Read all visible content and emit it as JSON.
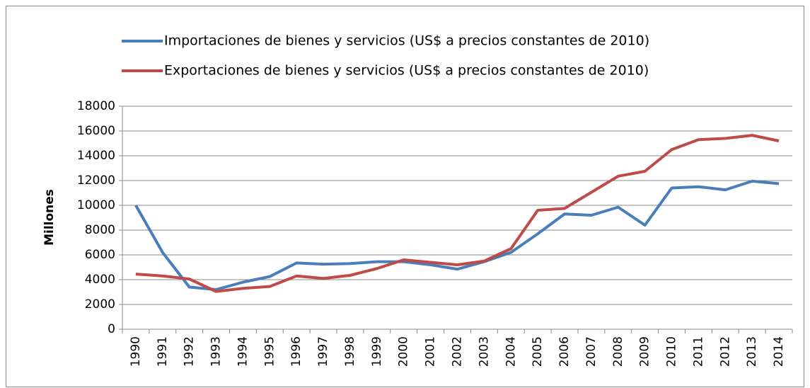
{
  "chart_data": {
    "type": "line",
    "y_label": "Millones",
    "categories": [
      "1990",
      "1991",
      "1992",
      "1993",
      "1994",
      "1995",
      "1996",
      "1997",
      "1998",
      "1999",
      "2000",
      "2001",
      "2002",
      "2003",
      "2004",
      "2005",
      "2006",
      "2007",
      "2008",
      "2009",
      "2010",
      "2011",
      "2012",
      "2013",
      "2014"
    ],
    "series": [
      {
        "name": "Importaciones de bienes y servicios (US$ a precios constantes de 2010)",
        "color": "#4a7ebb",
        "values": [
          10000,
          6200,
          3400,
          3200,
          3800,
          4250,
          5350,
          5250,
          5300,
          5450,
          5450,
          5200,
          4850,
          5450,
          6200,
          7700,
          9300,
          9200,
          9850,
          8400,
          11400,
          11500,
          11250,
          11950,
          11750
        ]
      },
      {
        "name": "Exportaciones de bienes y servicios (US$ a precios constantes de 2010)",
        "color": "#be4b48",
        "values": [
          4450,
          4300,
          4050,
          3050,
          3300,
          3450,
          4300,
          4100,
          4350,
          4900,
          5600,
          5400,
          5200,
          5500,
          6500,
          9600,
          9750,
          11050,
          12350,
          12750,
          14500,
          15300,
          15400,
          15650,
          15200
        ]
      }
    ],
    "ylim": [
      0,
      18000
    ],
    "yticks": [
      0,
      2000,
      4000,
      6000,
      8000,
      10000,
      12000,
      14000,
      16000,
      18000
    ],
    "grid": true,
    "legend": "top"
  }
}
